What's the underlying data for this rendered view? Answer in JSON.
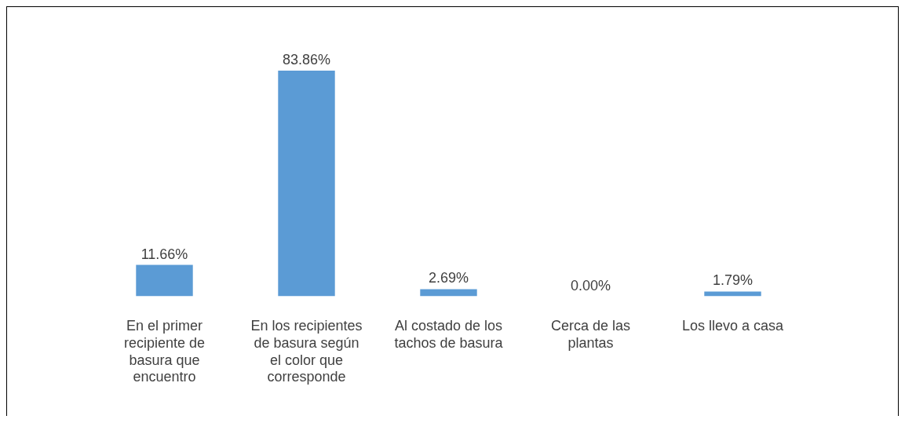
{
  "chart_data": {
    "type": "bar",
    "categories": [
      "En el primer recipiente de basura que encuentro",
      "En los recipientes de basura según el color que corresponde",
      "Al costado de los tachos de basura",
      "Cerca de las plantas",
      "Los llevo a casa"
    ],
    "values": [
      11.66,
      83.86,
      2.69,
      0.0,
      1.79
    ],
    "value_labels": [
      "11.66%",
      "83.86%",
      "2.69%",
      "0.00%",
      "1.79%"
    ],
    "color": "#5b9bd5",
    "grid": false,
    "legend": false,
    "tick_labels": "x"
  }
}
